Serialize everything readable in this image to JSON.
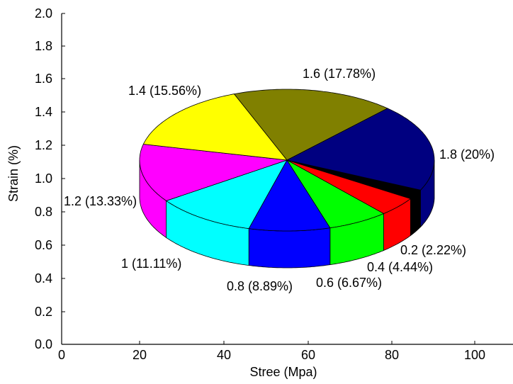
{
  "chart_data": {
    "type": "pie",
    "title": "",
    "xlabel": "Stree (Mpa)",
    "ylabel": "Strain (%)",
    "xlim": [
      0,
      100
    ],
    "ylim": [
      0.0,
      2.0
    ],
    "x_ticks": [
      "0",
      "20",
      "40",
      "60",
      "80",
      "100"
    ],
    "y_ticks": [
      "0.0",
      "0.2",
      "0.4",
      "0.6",
      "0.8",
      "1.0",
      "1.2",
      "1.4",
      "1.6",
      "1.8",
      "2.0"
    ],
    "slices": [
      {
        "value": 0.2,
        "percent": 2.22,
        "label": "0.2 (2.22%)",
        "color": "#000000"
      },
      {
        "value": 0.4,
        "percent": 4.44,
        "label": "0.4 (4.44%)",
        "color": "#ff0000"
      },
      {
        "value": 0.6,
        "percent": 6.67,
        "label": "0.6 (6.67%)",
        "color": "#00ff00"
      },
      {
        "value": 0.8,
        "percent": 8.89,
        "label": "0.8 (8.89%)",
        "color": "#0000ff"
      },
      {
        "value": 1.0,
        "percent": 11.11,
        "label": "1 (11.11%)",
        "color": "#00ffff"
      },
      {
        "value": 1.2,
        "percent": 13.33,
        "label": "1.2 (13.33%)",
        "color": "#ff00ff"
      },
      {
        "value": 1.4,
        "percent": 15.56,
        "label": "1.4 (15.56%)",
        "color": "#ffff00"
      },
      {
        "value": 1.6,
        "percent": 17.78,
        "label": "1.6 (17.78%)",
        "color": "#808000"
      },
      {
        "value": 1.8,
        "percent": 20.0,
        "label": "1.8 (20%)",
        "color": "#000080"
      }
    ],
    "grid": false,
    "legend": "none"
  }
}
